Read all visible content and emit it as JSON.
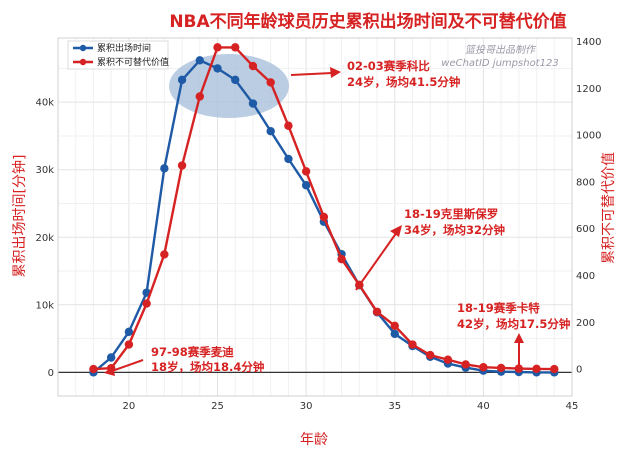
{
  "chart_data": {
    "type": "line",
    "title": "NBA不同年龄球员历史累积出场时间及不可替代价值",
    "xlabel": "年龄",
    "ylabel_left": "累积出场时间[分钟]",
    "ylabel_right": "累积不可替代价值",
    "xlim": [
      16,
      45
    ],
    "ylim_left": [
      -3500,
      49500
    ],
    "ylim_right": [
      -115,
      1415
    ],
    "x_ticks": [
      20,
      25,
      30,
      35,
      40,
      45
    ],
    "y_left_ticks": [
      0,
      10000,
      20000,
      30000,
      40000
    ],
    "y_left_tick_labels": [
      "0",
      "10k",
      "20k",
      "30k",
      "40k"
    ],
    "y_right_ticks": [
      0,
      200,
      400,
      600,
      800,
      1000,
      1200,
      1400
    ],
    "grid": true,
    "legend_position": "top-left",
    "watermark": [
      "篮投哥出品制作",
      "weChatID jumpshot123"
    ],
    "series": [
      {
        "name": "累积出场时间",
        "axis": "left",
        "color": "#1f5aa6",
        "x": [
          18,
          19,
          20,
          21,
          22,
          23,
          24,
          25,
          26,
          27,
          28,
          29,
          30,
          31,
          32,
          33,
          34,
          35,
          36,
          37,
          38,
          39,
          40,
          41,
          42,
          43,
          44
        ],
        "values": [
          0,
          2200,
          6000,
          11800,
          30200,
          43300,
          46200,
          45000,
          43300,
          39800,
          35700,
          31600,
          27700,
          22300,
          17500,
          12900,
          8900,
          5700,
          3900,
          2300,
          1300,
          700,
          250,
          100,
          50,
          0,
          0
        ]
      },
      {
        "name": "累积不可替代价值",
        "axis": "right",
        "color": "#d62222",
        "x": [
          18,
          19,
          20,
          21,
          22,
          23,
          24,
          25,
          26,
          27,
          28,
          29,
          30,
          31,
          32,
          33,
          34,
          35,
          36,
          37,
          38,
          39,
          40,
          41,
          42,
          43,
          44
        ],
        "values": [
          0,
          4,
          105,
          280,
          490,
          870,
          1165,
          1375,
          1375,
          1295,
          1225,
          1040,
          845,
          650,
          470,
          360,
          245,
          185,
          105,
          60,
          40,
          20,
          8,
          5,
          2,
          1,
          0
        ]
      }
    ],
    "annotations": [
      {
        "lines": [
          "02-03赛季科比",
          "24岁，场均41.5分钟"
        ],
        "x": 24
      },
      {
        "lines": [
          "18-19克里斯保罗",
          "34岁，场均32分钟"
        ],
        "x": 34
      },
      {
        "lines": [
          "18-19赛季卡特",
          "42岁，场均17.5分钟"
        ],
        "x": 42
      },
      {
        "lines": [
          "97-98赛季麦迪",
          "18岁，场均18.4分钟"
        ],
        "x": 18
      }
    ]
  }
}
